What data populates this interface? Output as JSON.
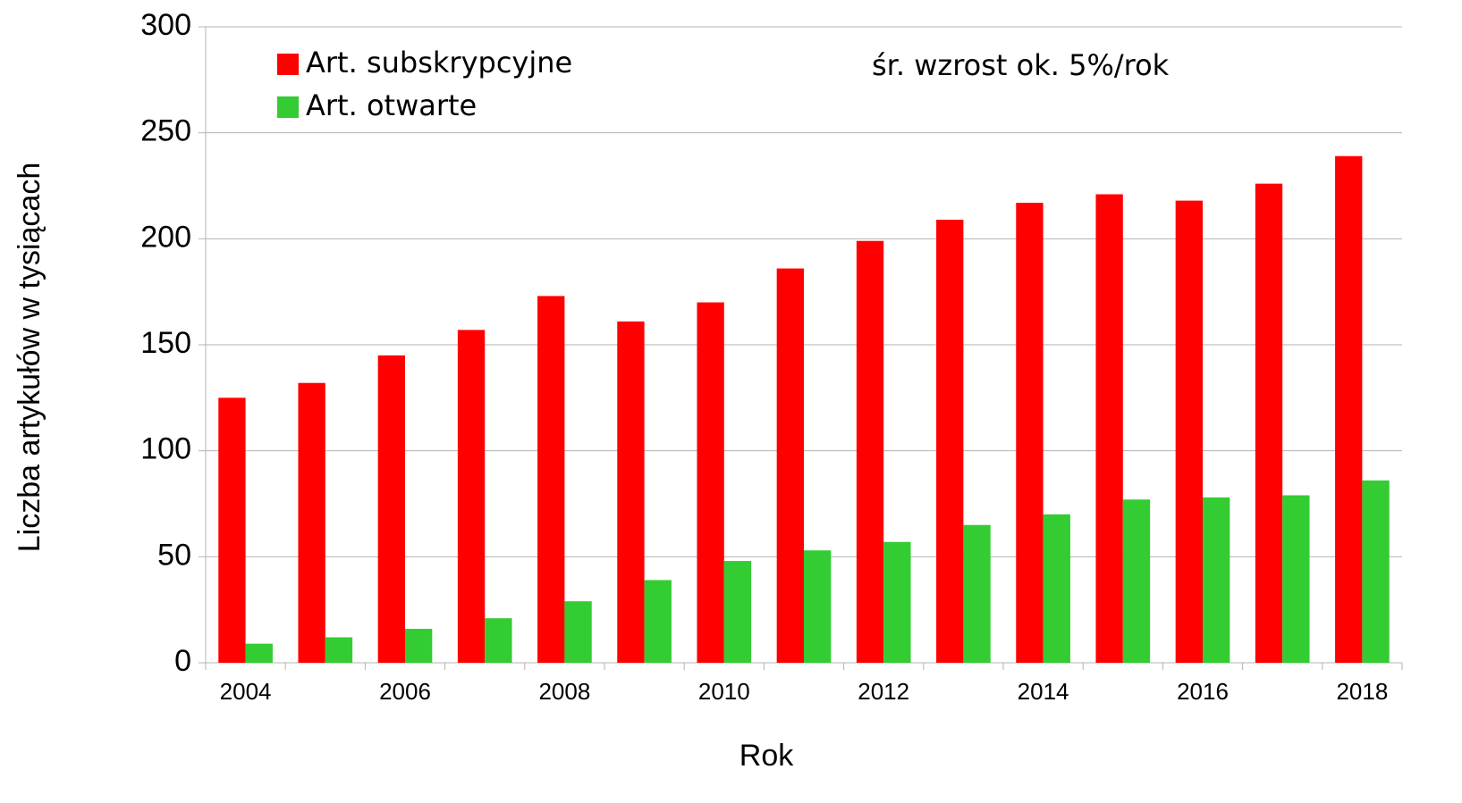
{
  "chart_data": {
    "type": "bar",
    "annotation": "śr. wzrost ok. 5%/rok",
    "x_label": "Rok",
    "y_label": "Liczba artykułów w tysiącach",
    "categories": [
      "2004",
      null,
      "2006",
      null,
      "2008",
      null,
      "2010",
      null,
      "2012",
      null,
      "2014",
      null,
      "2016",
      null,
      "2018"
    ],
    "series": [
      {
        "name": "Art. subskrypcyjne",
        "color": "#ff0000",
        "values": [
          125,
          132,
          145,
          157,
          173,
          161,
          170,
          186,
          199,
          209,
          217,
          221,
          218,
          226,
          239
        ]
      },
      {
        "name": "Art. otwarte",
        "color": "#33cc33",
        "values": [
          9,
          12,
          16,
          21,
          29,
          39,
          48,
          53,
          57,
          65,
          70,
          77,
          78,
          79,
          86
        ]
      }
    ],
    "ylim": [
      0,
      300
    ],
    "yticks": [
      0,
      50,
      100,
      150,
      200,
      250,
      300
    ],
    "grid": true,
    "legend": "top-left"
  }
}
